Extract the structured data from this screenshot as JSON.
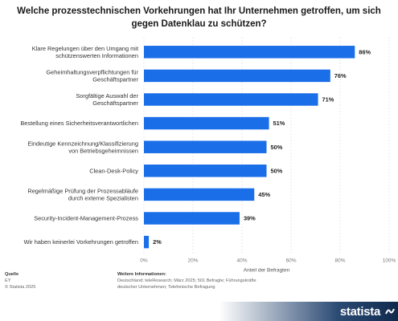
{
  "title": "Welche prozesstechnischen Vorkehrungen hat Ihr Unternehmen getroffen, um sich gegen Datenklau zu schützen?",
  "colors": {
    "bar": "#1a6ee8",
    "grid": "#d9d9d9",
    "brand_dark": "#102a4c"
  },
  "chart_data": {
    "type": "bar",
    "orientation": "horizontal",
    "categories": [
      [
        "Klare Regelungen über den Umgang mit",
        "schützenswerten Informationen"
      ],
      [
        "Geheimhaltungsverpflichtungen für",
        "Geschäftspartner"
      ],
      [
        "Sorgfältige Auswahl der",
        "Geschäftspartner"
      ],
      [
        "Bestellung eines Sicherheitsverantwortlichen"
      ],
      [
        "Eindeutige Kennzeichnung/Klassifizierung",
        "von Betriebsgeheimnissen"
      ],
      [
        "Clean-Desk-Policy"
      ],
      [
        "Regelmäßige Prüfung der Prozessabläufe",
        "durch externe Spezialisten"
      ],
      [
        "Security-Incident-Management-Prozess"
      ],
      [
        "Wir haben keinerlei Vorkehrungen getroffen"
      ]
    ],
    "values": [
      86,
      76,
      71,
      51,
      50,
      50,
      45,
      39,
      2
    ],
    "value_labels": [
      "86%",
      "76%",
      "71%",
      "51%",
      "50%",
      "50%",
      "45%",
      "39%",
      "2%"
    ],
    "xlim": [
      0,
      100
    ],
    "ticks": [
      "0%",
      "20%",
      "40%",
      "60%",
      "80%",
      "100%"
    ],
    "xlabel": "Anteil der Befragten",
    "grid": true
  },
  "footer": {
    "source_head": "Quelle",
    "source_lines": [
      "EY",
      "© Statista 2025"
    ],
    "info_head": "Weitere Informationen:",
    "info_lines": [
      "Deutschland; teleResearch; März 2025; 501 Befragte; Führungskräfte",
      "deutscher Unternehmen; Telefonische Befragung"
    ]
  },
  "brand": "statista"
}
